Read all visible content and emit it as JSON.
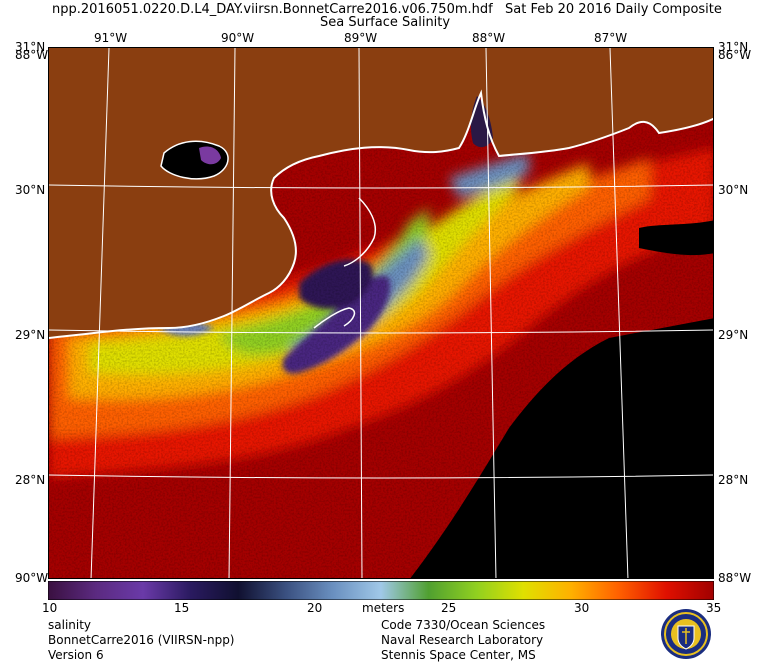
{
  "header": {
    "filename": "npp.2016051.0220.D.L4_DAY.viirsn.BonnetCarre2016.v06.750m.hdf",
    "date_label": "Sat Feb 20 2016 Daily Composite",
    "product_title": "Sea Surface Salinity"
  },
  "map": {
    "top_lon_labels": [
      "91°W",
      "90°W",
      "89°W",
      "88°W",
      "87°W"
    ],
    "left_lat_labels": [
      "31°N",
      "30°N",
      "29°N",
      "28°N"
    ],
    "right_lat_labels": [
      "31°N",
      "30°N",
      "29°N",
      "28°N"
    ],
    "corner_overlap_top_left": "88°W",
    "corner_overlap_top_right": "86°W",
    "corner_overlap_bottom_left": "90°W",
    "corner_overlap_bottom_right": "88°W",
    "colors": {
      "land": "#8a3e10",
      "no_data": "#000000",
      "high_salinity": "#a50000",
      "coast": "#ffffff",
      "grid": "#ffffff"
    }
  },
  "colorbar": {
    "min": 10,
    "max": 35,
    "tick_labels": [
      "10",
      "15",
      "20",
      "25",
      "30",
      "35"
    ],
    "unit_label": "meters",
    "stops": [
      "#3a1040",
      "#5b2a80",
      "#6a3aa8",
      "#2a1a60",
      "#101030",
      "#3a5080",
      "#6a90c0",
      "#a0c8e8",
      "#50a030",
      "#90d020",
      "#e0e000",
      "#ffb000",
      "#ff6000",
      "#e01000",
      "#a00000"
    ]
  },
  "footer": {
    "left_line1": "salinity",
    "left_line2": "BonnetCarre2016 (VIIRSN-npp)",
    "left_line3": "Version 6",
    "right_line1": "Code 7330/Ocean Sciences",
    "right_line2": "Naval Research Laboratory",
    "right_line3": "Stennis Space Center, MS"
  },
  "seal_icon": "nrl-seal-icon"
}
